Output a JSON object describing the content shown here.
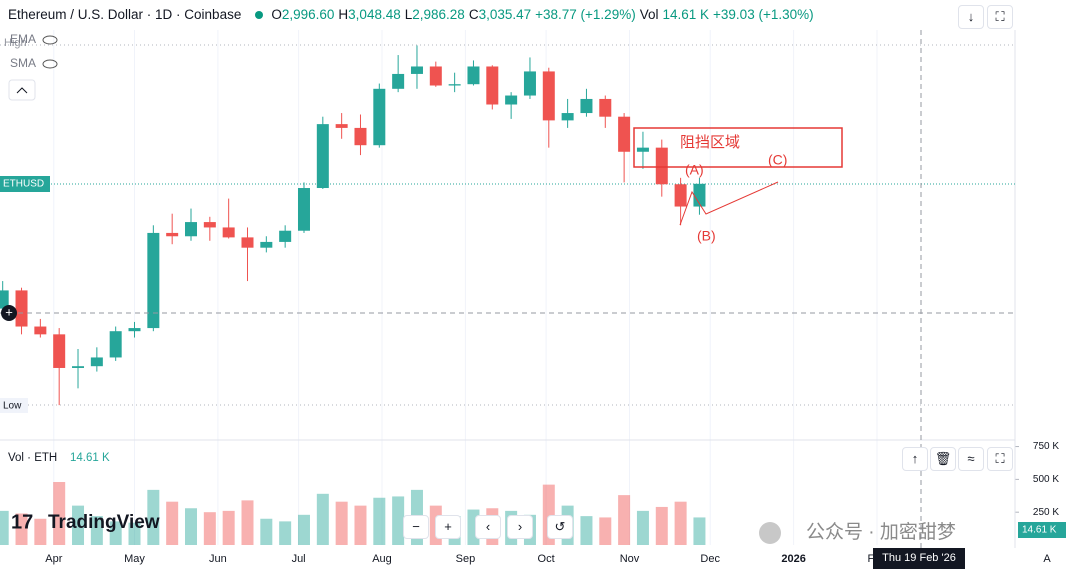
{
  "header": {
    "title": "Ethereum / U.S. Dollar · 1D · Coinbase",
    "ohlc": [
      {
        "label": "O",
        "value": "2,996.60"
      },
      {
        "label": "H",
        "value": "3,048.48"
      },
      {
        "label": "L",
        "value": "2,986.28"
      },
      {
        "label": "C",
        "value": "3,035.47"
      }
    ],
    "change": "+38.77 (+1.29%)",
    "vol_label": "Vol",
    "vol": "14.61 K",
    "vol_change": "+39.03 (+1.30%)"
  },
  "indicators": [
    "EMA",
    "SMA"
  ],
  "high_label": "High",
  "low_label": "Low",
  "symbol_tag": "ETHUSD",
  "annotations": {
    "zone": "阻挡区域",
    "a": "(A)",
    "b": "(B)",
    "c": "(C)"
  },
  "watermark": "TradingView",
  "footer": "公众号 · 加密甜梦",
  "crosshair_time": "Thu 19 Feb '26",
  "scale_mode": "A",
  "chart_data": [
    {
      "type": "candlestick",
      "log": true,
      "up_color": "#26a69a",
      "down_color": "#ef5350",
      "xlim": [
        71,
        448.3
      ],
      "ylim": [
        1224,
        5235
      ],
      "xticks": [
        {
          "value": 91,
          "label": "Apr"
        },
        {
          "value": 121,
          "label": "May"
        },
        {
          "value": 152,
          "label": "Jun"
        },
        {
          "value": 182,
          "label": "Jul"
        },
        {
          "value": 213,
          "label": "Aug"
        },
        {
          "value": 244,
          "label": "Sep"
        },
        {
          "value": 274,
          "label": "Oct"
        },
        {
          "value": 305,
          "label": "Nov"
        },
        {
          "value": 335,
          "label": "Dec"
        },
        {
          "value": 366,
          "label": "2026"
        },
        {
          "value": 397,
          "label": "Feb"
        }
      ],
      "x": [
        72,
        79,
        86,
        93,
        100,
        107,
        114,
        121,
        128,
        135,
        142,
        149,
        156,
        163,
        170,
        177,
        184,
        191,
        198,
        205,
        212,
        219,
        226,
        233,
        240,
        247,
        254,
        261,
        268,
        275,
        282,
        289,
        296,
        303,
        310,
        317,
        324,
        331
      ],
      "open": [
        1950,
        2080,
        1830,
        1780,
        1580,
        1590,
        1640,
        1800,
        1820,
        2550,
        2520,
        2650,
        2600,
        2510,
        2420,
        2470,
        2570,
        2990,
        3750,
        3700,
        3480,
        4250,
        4480,
        4600,
        4300,
        4320,
        4600,
        4020,
        4150,
        4520,
        3800,
        3900,
        4100,
        3850,
        3400,
        3450,
        3030,
        2800
      ],
      "high": [
        2150,
        2100,
        1880,
        1820,
        1690,
        1700,
        1830,
        1860,
        2620,
        2730,
        2780,
        2700,
        2880,
        2600,
        2520,
        2620,
        3050,
        3850,
        3900,
        3880,
        4330,
        4790,
        4956,
        4680,
        4500,
        4700,
        4620,
        4200,
        4750,
        4580,
        4100,
        4250,
        4150,
        3900,
        3650,
        3550,
        3100,
        3100
      ],
      "low": [
        1900,
        1780,
        1760,
        1385,
        1470,
        1560,
        1620,
        1760,
        1800,
        2450,
        2480,
        2480,
        2500,
        2150,
        2380,
        2420,
        2550,
        2980,
        3560,
        3360,
        3450,
        4200,
        4250,
        4280,
        4200,
        4300,
        3950,
        3820,
        4100,
        3450,
        3700,
        3850,
        3700,
        3050,
        3200,
        2900,
        2620,
        2720
      ],
      "close": [
        2080,
        1830,
        1780,
        1580,
        1590,
        1640,
        1800,
        1820,
        2550,
        2520,
        2650,
        2600,
        2510,
        2420,
        2470,
        2570,
        2990,
        3750,
        3700,
        3480,
        4250,
        4480,
        4600,
        4300,
        4320,
        4600,
        4020,
        4150,
        4520,
        3800,
        3900,
        4100,
        3850,
        3400,
        3450,
        3030,
        2800,
        3035
      ]
    },
    {
      "type": "bar",
      "name": "Vol · ETH",
      "last": "14.61 K",
      "ylim": [
        0,
        800000
      ],
      "yticks": [
        {
          "value": 250000,
          "label": "250 K"
        },
        {
          "value": 500000,
          "label": "500 K"
        },
        {
          "value": 750000,
          "label": "750 K"
        }
      ],
      "values": [
        260000,
        240000,
        200000,
        480000,
        300000,
        220000,
        180000,
        170000,
        420000,
        330000,
        280000,
        250000,
        260000,
        340000,
        200000,
        180000,
        230000,
        390000,
        330000,
        300000,
        360000,
        370000,
        420000,
        300000,
        220000,
        270000,
        280000,
        260000,
        230000,
        460000,
        300000,
        220000,
        210000,
        380000,
        260000,
        290000,
        330000,
        210000
      ]
    }
  ]
}
